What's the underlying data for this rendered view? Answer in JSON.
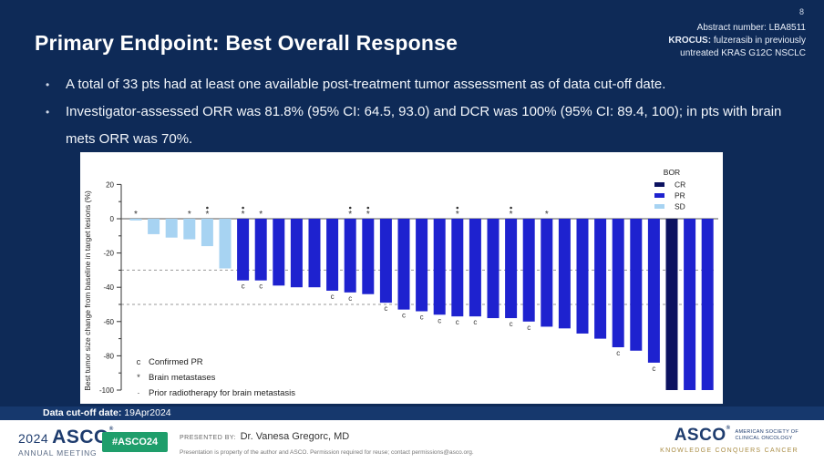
{
  "slide": {
    "page_number": "8",
    "header": {
      "abstract_line": "Abstract number: LBA8511",
      "krocus_bold": "KROCUS:",
      "krocus_rest": " fulzerasib in previously",
      "krocus_line2": "untreated KRAS G12C NSCLC",
      "title": "Primary Endpoint: Best Overall Response"
    },
    "bullet_char": "•",
    "bullets": [
      "A total of 33 pts had at least one available post-treatment tumor assessment as of data cut-off date.",
      "Investigator-assessed ORR was 81.8% (95% CI: 64.5, 93.0) and DCR was 100% (95% CI: 89.4, 100); in pts with brain mets ORR was 70%."
    ],
    "cutoff": {
      "label": "Data cut-off date:",
      "value": " 19Apr2024"
    },
    "footer": {
      "left_logo": {
        "year": "2024",
        "asco": "ASCO",
        "reg": "®",
        "sub": "ANNUAL MEETING"
      },
      "badge": "#ASCO24",
      "presented_label": "PRESENTED BY:",
      "presenter": " Dr. Vanesa Gregorc, MD",
      "fineprint": "Presentation is property of the author and ASCO. Permission required for reuse; contact permissions@asco.org.",
      "right_logo": {
        "asco": "ASCO",
        "reg": "®",
        "society_line1": "AMERICAN SOCIETY OF",
        "society_line2": "CLINICAL ONCOLOGY",
        "tagline": "KNOWLEDGE CONQUERS CANCER"
      }
    },
    "colors": {
      "slide_bg": "#0e2a57",
      "band_bg": "#16386d",
      "badge_green": "#1f9e6b",
      "tagline_gold": "#a98c44"
    }
  },
  "chart_data": {
    "type": "bar",
    "subtype": "waterfall",
    "title": "",
    "xlabel": "",
    "ylabel": "Best tumor size change from baseline in target lesions (%)",
    "ylim": [
      -100,
      20
    ],
    "yticks_major": [
      20,
      0,
      -20,
      -40,
      -60,
      -80,
      -100
    ],
    "yticks_minor": [
      10,
      -10,
      -30,
      -50,
      -70,
      -90
    ],
    "reference_lines": [
      -30,
      -50
    ],
    "grid": false,
    "legend": {
      "title": "BOR",
      "position": "top-right",
      "entries": [
        {
          "label": "CR",
          "color": "#0c1260"
        },
        {
          "label": "PR",
          "color": "#1e22cf"
        },
        {
          "label": "SD",
          "color": "#a7d3f2"
        }
      ]
    },
    "key": [
      {
        "symbol": "c",
        "label": "Confirmed PR"
      },
      {
        "symbol": "*",
        "label": "Brain metastases"
      },
      {
        "symbol": "·",
        "label": "Prior radiotherapy for brain metastasis"
      }
    ],
    "bars": [
      {
        "v": -1,
        "bor": "SD",
        "star": true
      },
      {
        "v": -9,
        "bor": "SD"
      },
      {
        "v": -11,
        "bor": "SD"
      },
      {
        "v": -12,
        "bor": "SD",
        "star": true
      },
      {
        "v": -16,
        "bor": "SD",
        "star": true,
        "dot": true
      },
      {
        "v": -29,
        "bor": "SD"
      },
      {
        "v": -36,
        "bor": "PR",
        "star": true,
        "dot": true,
        "c": true
      },
      {
        "v": -36,
        "bor": "PR",
        "star": true,
        "c": true
      },
      {
        "v": -39,
        "bor": "PR"
      },
      {
        "v": -40,
        "bor": "PR"
      },
      {
        "v": -40,
        "bor": "PR"
      },
      {
        "v": -42,
        "bor": "PR",
        "c": true
      },
      {
        "v": -43,
        "bor": "PR",
        "star": true,
        "dot": true,
        "c": true
      },
      {
        "v": -44,
        "bor": "PR",
        "star": true,
        "dot": true
      },
      {
        "v": -49,
        "bor": "PR",
        "c": true
      },
      {
        "v": -53,
        "bor": "PR",
        "c": true
      },
      {
        "v": -54,
        "bor": "PR",
        "c": true
      },
      {
        "v": -56,
        "bor": "PR",
        "c": true
      },
      {
        "v": -57,
        "bor": "PR",
        "star": true,
        "dot": true,
        "c": true
      },
      {
        "v": -57,
        "bor": "PR",
        "c": true
      },
      {
        "v": -58,
        "bor": "PR"
      },
      {
        "v": -58,
        "bor": "PR",
        "star": true,
        "dot": true,
        "c": true
      },
      {
        "v": -60,
        "bor": "PR",
        "c": true
      },
      {
        "v": -63,
        "bor": "PR",
        "star": true
      },
      {
        "v": -64,
        "bor": "PR"
      },
      {
        "v": -67,
        "bor": "PR"
      },
      {
        "v": -70,
        "bor": "PR"
      },
      {
        "v": -75,
        "bor": "PR",
        "c": true
      },
      {
        "v": -77,
        "bor": "PR"
      },
      {
        "v": -84,
        "bor": "PR",
        "c": true
      },
      {
        "v": -100,
        "bor": "CR"
      },
      {
        "v": -100,
        "bor": "PR"
      },
      {
        "v": -100,
        "bor": "PR"
      }
    ]
  }
}
